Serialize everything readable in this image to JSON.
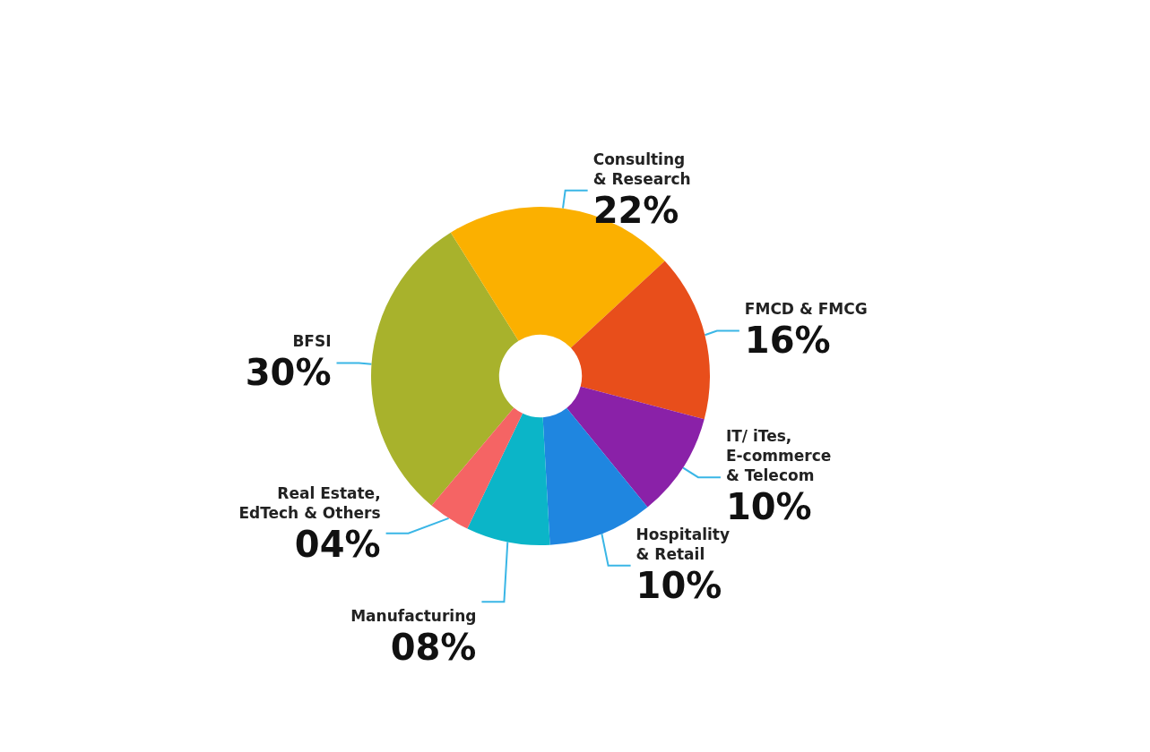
{
  "chart_data": {
    "type": "donut",
    "categories": [
      "BFSI",
      "Consulting\n& Research",
      "FMCD & FMCG",
      "IT/ iTes,\nE-commerce\n& Telecom",
      "Hospitality\n& Retail",
      "Manufacturing",
      "Real Estate,\nEdTech & Others"
    ],
    "values": [
      30,
      22,
      16,
      10,
      10,
      8,
      4
    ],
    "value_labels": [
      "30%",
      "22%",
      "16%",
      "10%",
      "10%",
      "08%",
      "04%"
    ],
    "colors": [
      "#a8b22c",
      "#fbb000",
      "#e84e1b",
      "#8a21a8",
      "#1f86e0",
      "#0bb5c8",
      "#f56464"
    ],
    "legend": false
  }
}
